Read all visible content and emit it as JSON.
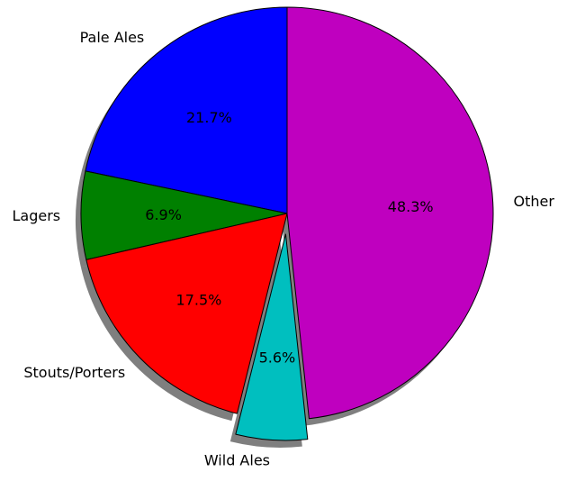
{
  "chart_data": {
    "type": "pie",
    "title": "",
    "start_angle_deg": 90,
    "direction": "counterclockwise",
    "shadow": true,
    "edgecolor": "#000000",
    "slices": [
      {
        "label": "Pale Ales",
        "value": 21.7,
        "pct_label": "21.7%",
        "color": "#0000ff",
        "exploded": false
      },
      {
        "label": "Lagers",
        "value": 6.9,
        "pct_label": "6.9%",
        "color": "#008000",
        "exploded": false
      },
      {
        "label": "Stouts/Porters",
        "value": 17.5,
        "pct_label": "17.5%",
        "color": "#ff0000",
        "exploded": false
      },
      {
        "label": "Wild Ales",
        "value": 5.6,
        "pct_label": "5.6%",
        "color": "#00bfbf",
        "exploded": true
      },
      {
        "label": "Other",
        "value": 48.3,
        "pct_label": "48.3%",
        "color": "#bf00bf",
        "exploded": false
      }
    ]
  }
}
